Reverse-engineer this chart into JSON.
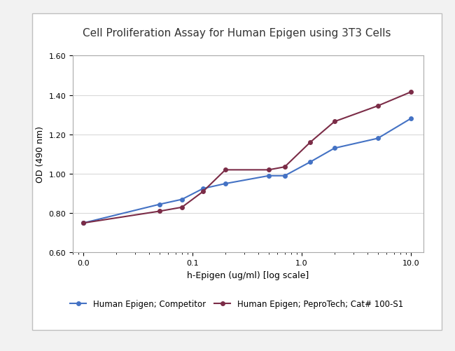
{
  "title": "Cell Proliferation Assay for Human Epigen using 3T3 Cells",
  "xlabel": "h-Epigen (ug/ml) [log scale]",
  "ylabel": "OD (490 nm)",
  "background_color": "#f2f2f2",
  "plot_bg_color": "#ffffff",
  "panel_bg_color": "#ffffff",
  "ylim": [
    0.6,
    1.6
  ],
  "yticks": [
    0.6,
    0.8,
    1.0,
    1.2,
    1.4,
    1.6
  ],
  "series": [
    {
      "label": "Human Epigen; Competitor",
      "color": "#4472c4",
      "x": [
        0.01,
        0.05,
        0.08,
        0.125,
        0.2,
        0.5,
        0.7,
        1.2,
        2.0,
        5.0,
        10.0
      ],
      "y": [
        0.75,
        0.845,
        0.87,
        0.925,
        0.95,
        0.99,
        0.99,
        1.06,
        1.13,
        1.18,
        1.28
      ]
    },
    {
      "label": "Human Epigen; PeproTech; Cat# 100-S1",
      "color": "#7b2c47",
      "x": [
        0.01,
        0.05,
        0.08,
        0.125,
        0.2,
        0.5,
        0.7,
        1.2,
        2.0,
        5.0,
        10.0
      ],
      "y": [
        0.75,
        0.81,
        0.83,
        0.91,
        1.02,
        1.02,
        1.035,
        1.16,
        1.265,
        1.345,
        1.415
      ]
    }
  ],
  "title_fontsize": 11,
  "axis_fontsize": 9,
  "tick_fontsize": 8,
  "legend_fontsize": 8.5,
  "grid_color": "#d9d9d9",
  "panel_border_color": "#bfbfbf"
}
